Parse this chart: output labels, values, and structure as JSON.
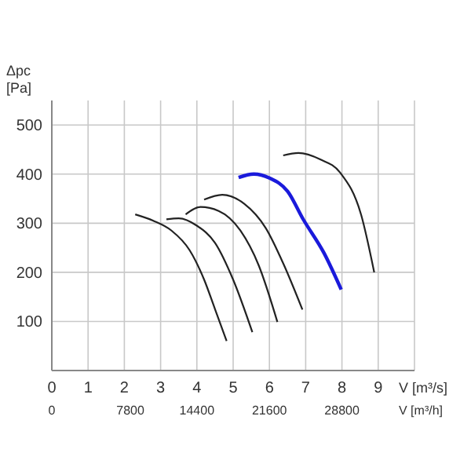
{
  "chart_data": {
    "type": "line",
    "xlabel": "V [m³/s]",
    "ylabel": "Δpc [Pa]",
    "x2label": "V [m³/h]",
    "xlim": [
      0,
      10
    ],
    "xticks": [
      0,
      1,
      2,
      3,
      4,
      5,
      6,
      7,
      8,
      9
    ],
    "ylim": [
      0,
      550
    ],
    "yticks": [
      100,
      200,
      300,
      400,
      500
    ],
    "x2lim": [
      0,
      36000
    ],
    "x2ticks": [
      0,
      7800,
      14400,
      21600,
      28800
    ],
    "grid": true,
    "marker": "none",
    "line_style": "solid",
    "series": [
      {
        "color": "#222222",
        "x": [
          2.3,
          2.8,
          3.3,
          3.8,
          4.2,
          4.5,
          4.82
        ],
        "values": [
          318,
          305,
          285,
          245,
          185,
          125,
          60
        ]
      },
      {
        "color": "#222222",
        "x": [
          3.16,
          3.5,
          4.0,
          4.5,
          5.0,
          5.53
        ],
        "values": [
          308,
          310,
          295,
          260,
          185,
          78
        ]
      },
      {
        "color": "#222222",
        "x": [
          3.69,
          4.1,
          4.6,
          5.2,
          5.7,
          6.22
        ],
        "values": [
          318,
          333,
          325,
          285,
          215,
          99
        ]
      },
      {
        "color": "#222222",
        "x": [
          4.2,
          4.7,
          5.3,
          5.9,
          6.4,
          6.91
        ],
        "values": [
          348,
          358,
          340,
          290,
          215,
          124
        ]
      },
      {
        "color": "#1a1adb",
        "x": [
          5.15,
          5.57,
          6.0,
          6.5,
          6.94,
          7.5,
          7.98
        ],
        "values": [
          393,
          400,
          392,
          365,
          307,
          240,
          165
        ]
      },
      {
        "color": "#222222",
        "x": [
          6.38,
          6.8,
          7.4,
          7.95,
          8.53,
          8.89
        ],
        "values": [
          438,
          443,
          430,
          403,
          317,
          200
        ]
      }
    ]
  }
}
